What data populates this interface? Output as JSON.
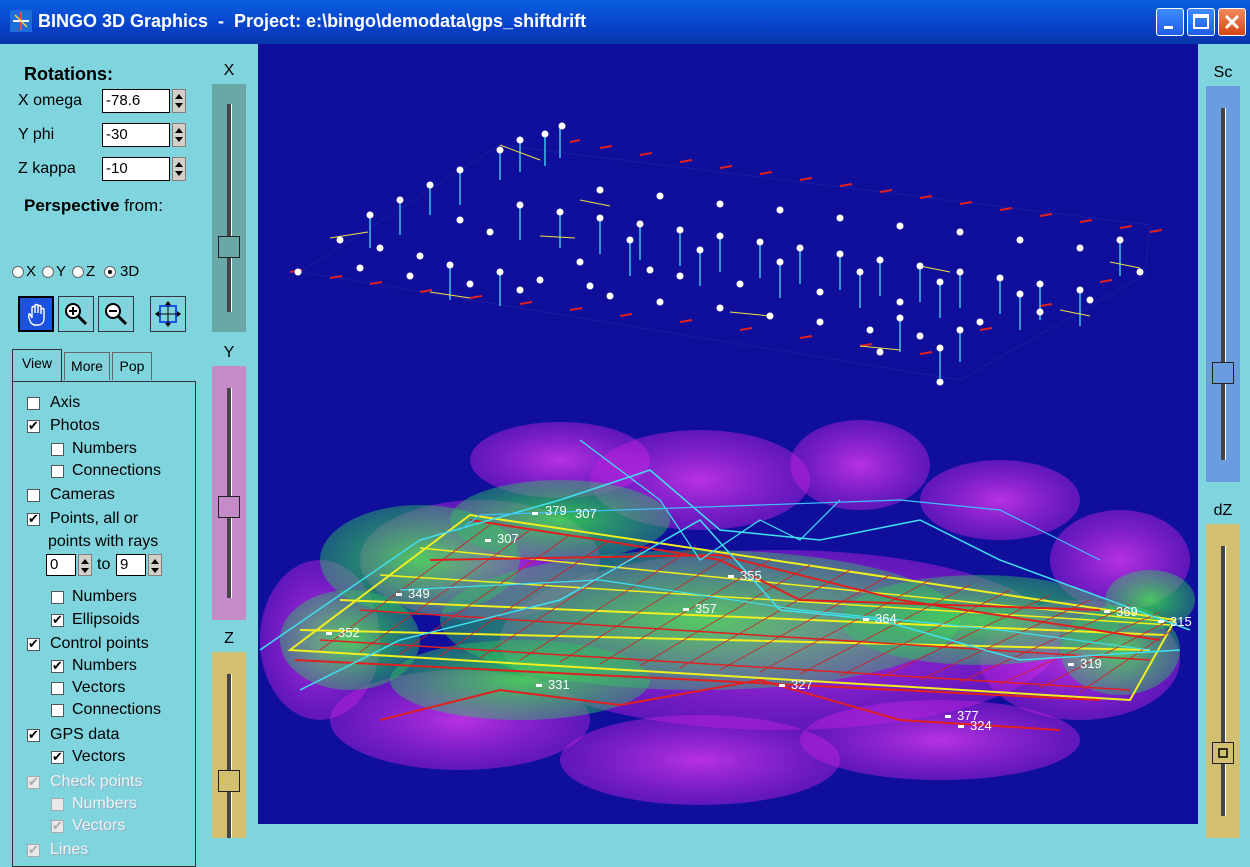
{
  "window": {
    "title": "BINGO 3D Graphics  -  Project: e:\\bingo\\demodata\\gps_shiftdrift"
  },
  "rotations": {
    "heading": "Rotations:",
    "x_label": "X omega",
    "x_value": "-78.6",
    "y_label": "Y phi",
    "y_value": "-30",
    "z_label": "Z kappa",
    "z_value": "-10"
  },
  "perspective": {
    "heading_bold": "Perspective",
    "heading_rest": "from:",
    "options": [
      "X",
      "Y",
      "Z",
      "3D"
    ],
    "selected": "3D"
  },
  "tabs": [
    "View",
    "More",
    "Pop"
  ],
  "view_options": {
    "axis": "Axis",
    "photos": "Photos",
    "photo_numbers": "Numbers",
    "photo_connections": "Connections",
    "cameras": "Cameras",
    "points_line1": "Points, all or",
    "points_line2": "points with rays",
    "rays_from": "0",
    "rays_to_label": "to",
    "rays_to": "9",
    "point_numbers": "Numbers",
    "ellipsoids": "Ellipsoids",
    "control_points": "Control points",
    "cp_numbers": "Numbers",
    "cp_vectors": "Vectors",
    "cp_connections": "Connections",
    "gps_data": "GPS data",
    "gps_vectors": "Vectors",
    "check_points": "Check points",
    "chk_numbers": "Numbers",
    "chk_vectors": "Vectors",
    "lines": "Lines"
  },
  "sliders": {
    "x": "X",
    "y": "Y",
    "z": "Z",
    "sc": "Sc",
    "dz": "dZ"
  },
  "control_point_labels": {
    "p379": "379",
    "p307a": "307",
    "p307b": "307",
    "p355": "355",
    "p349": "349",
    "p357": "357",
    "p364": "364",
    "p369": "369",
    "p315": "315",
    "p352": "352",
    "p319": "319",
    "p331": "331",
    "p327": "327",
    "p377": "377",
    "p324": "324"
  },
  "colors": {
    "viewport_bg": "#0f0f9c",
    "panel_bg": "#7fd4de",
    "slider_x": "#6aa8a8",
    "slider_y": "#c58ac8",
    "slider_z": "#d2c070",
    "slider_sc": "#6a9de0",
    "slider_dz": "#d2c070"
  }
}
